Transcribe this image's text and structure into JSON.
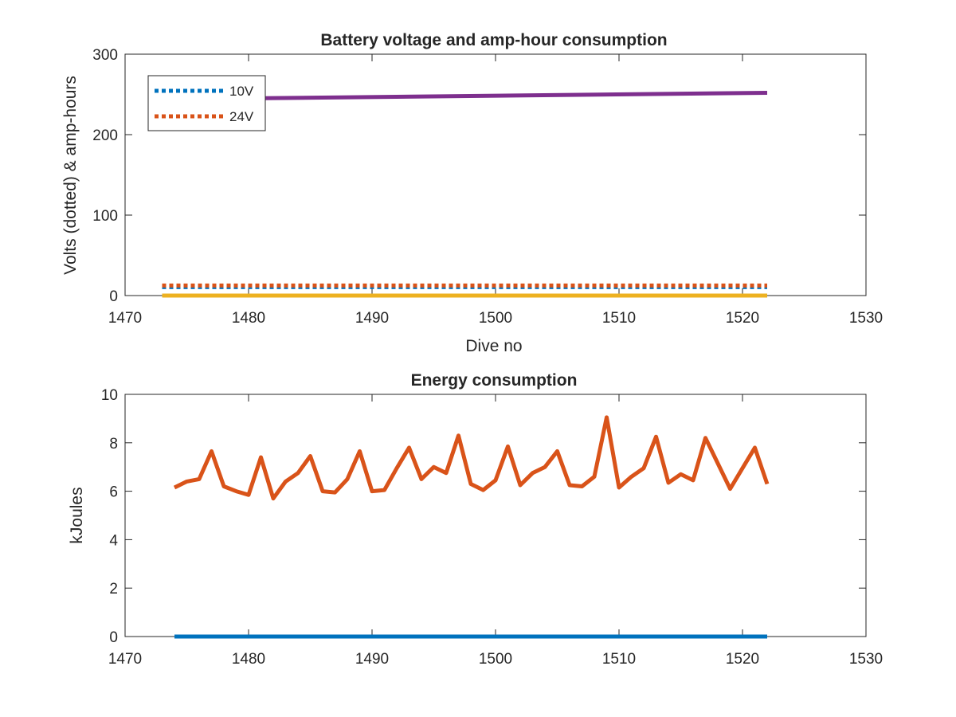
{
  "chart_data": [
    {
      "type": "line",
      "title": "Battery voltage and amp-hour consumption",
      "xlabel": "Dive no",
      "ylabel": "Volts (dotted) & amp-hours",
      "xlim": [
        1470,
        1530
      ],
      "ylim": [
        0,
        300
      ],
      "xticks": [
        "1470",
        "1480",
        "1490",
        "1500",
        "1510",
        "1520",
        "1530"
      ],
      "yticks": [
        "0",
        "100",
        "200",
        "300"
      ],
      "legend": {
        "placement": "top-left",
        "entries": [
          "10V",
          "24V"
        ]
      },
      "grid": false,
      "series": [
        {
          "name": "10V",
          "style": "dotted",
          "color": "#0072BD",
          "x": [
            1473,
            1522
          ],
          "y": [
            10.5,
            10.5
          ]
        },
        {
          "name": "24V",
          "style": "dotted",
          "color": "#D95319",
          "x": [
            1473,
            1522
          ],
          "y": [
            12.5,
            12.5
          ]
        },
        {
          "style": "solid",
          "color": "#EDB120",
          "x": [
            1473,
            1522
          ],
          "y": [
            0,
            0
          ]
        },
        {
          "style": "solid",
          "color": "#7E2F8E",
          "x": [
            1473,
            1522
          ],
          "y": [
            244,
            252
          ]
        }
      ]
    },
    {
      "type": "line",
      "title": "Energy consumption",
      "xlabel": "",
      "ylabel": "kJoules",
      "xlim": [
        1470,
        1530
      ],
      "ylim": [
        0,
        10
      ],
      "xticks": [
        "1470",
        "1480",
        "1490",
        "1500",
        "1510",
        "1520",
        "1530"
      ],
      "yticks": [
        "0",
        "2",
        "4",
        "6",
        "8",
        "10"
      ],
      "grid": false,
      "series": [
        {
          "style": "solid",
          "color": "#0072BD",
          "x": [
            1474,
            1522
          ],
          "y": [
            0,
            0
          ]
        },
        {
          "style": "solid",
          "color": "#D95319",
          "x": [
            1474,
            1475,
            1476,
            1477,
            1478,
            1479,
            1480,
            1481,
            1482,
            1483,
            1484,
            1485,
            1486,
            1487,
            1488,
            1489,
            1490,
            1491,
            1492,
            1493,
            1494,
            1495,
            1496,
            1497,
            1498,
            1499,
            1500,
            1501,
            1502,
            1503,
            1504,
            1505,
            1506,
            1507,
            1508,
            1509,
            1510,
            1511,
            1512,
            1513,
            1514,
            1515,
            1516,
            1517,
            1518,
            1519,
            1520,
            1521,
            1522
          ],
          "y": [
            6.15,
            6.4,
            6.5,
            7.65,
            6.2,
            6.0,
            5.85,
            7.4,
            5.7,
            6.4,
            6.75,
            7.45,
            6.0,
            5.95,
            6.5,
            7.65,
            6.0,
            6.05,
            6.95,
            7.8,
            6.5,
            7.0,
            6.75,
            8.3,
            6.3,
            6.05,
            6.45,
            7.85,
            6.25,
            6.75,
            7.0,
            7.65,
            6.25,
            6.2,
            6.6,
            9.05,
            6.15,
            6.6,
            6.95,
            8.25,
            6.35,
            6.7,
            6.45,
            8.2,
            7.15,
            6.1,
            6.95,
            7.8,
            6.3
          ]
        }
      ]
    }
  ]
}
